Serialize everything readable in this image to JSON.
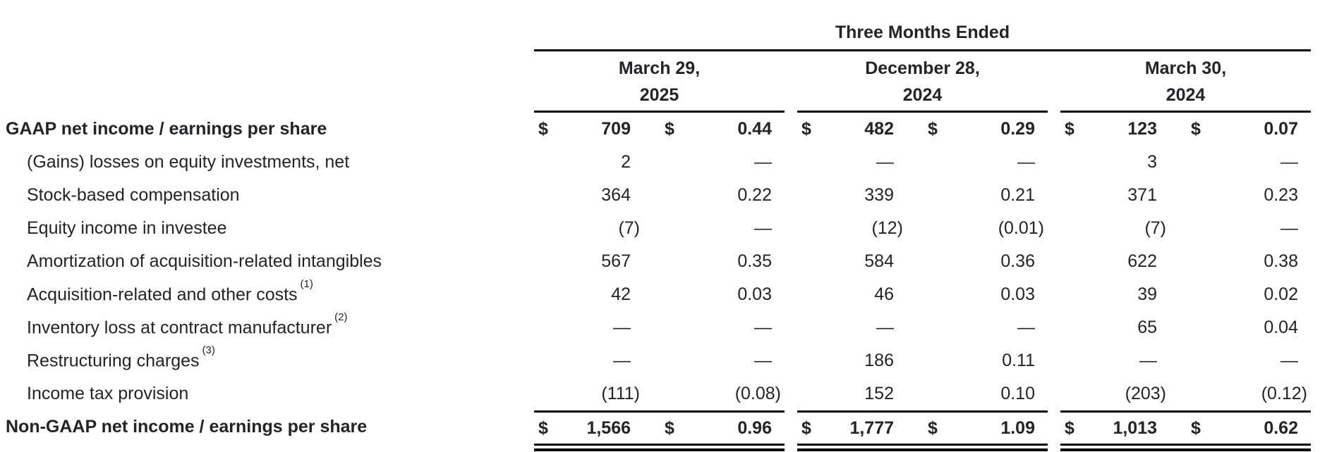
{
  "title": "Three Months Ended",
  "currency_symbol": "$",
  "periods": [
    {
      "month_line": "March 29,",
      "year_line": "2025"
    },
    {
      "month_line": "December 28,",
      "year_line": "2024"
    },
    {
      "month_line": "March 30,",
      "year_line": "2024"
    }
  ],
  "column_kinds": [
    "net_income_millions",
    "earnings_per_share"
  ],
  "rows": [
    {
      "label": "GAAP net income / earnings per share",
      "footnote": "",
      "bold": true,
      "dollar_sign": true,
      "values": [
        {
          "income": "709",
          "eps": "0.44"
        },
        {
          "income": "482",
          "eps": "0.29"
        },
        {
          "income": "123",
          "eps": "0.07"
        }
      ]
    },
    {
      "label": "(Gains) losses on equity investments, net",
      "footnote": "",
      "bold": false,
      "dollar_sign": false,
      "values": [
        {
          "income": "2",
          "eps": "—"
        },
        {
          "income": "—",
          "eps": "—"
        },
        {
          "income": "3",
          "eps": "—"
        }
      ]
    },
    {
      "label": "Stock-based compensation",
      "footnote": "",
      "bold": false,
      "dollar_sign": false,
      "values": [
        {
          "income": "364",
          "eps": "0.22"
        },
        {
          "income": "339",
          "eps": "0.21"
        },
        {
          "income": "371",
          "eps": "0.23"
        }
      ]
    },
    {
      "label": "Equity income in investee",
      "footnote": "",
      "bold": false,
      "dollar_sign": false,
      "values": [
        {
          "income": "(7)",
          "eps": "—"
        },
        {
          "income": "(12)",
          "eps": "(0.01)"
        },
        {
          "income": "(7)",
          "eps": "—"
        }
      ]
    },
    {
      "label": "Amortization of acquisition-related intangibles",
      "footnote": "",
      "bold": false,
      "dollar_sign": false,
      "values": [
        {
          "income": "567",
          "eps": "0.35"
        },
        {
          "income": "584",
          "eps": "0.36"
        },
        {
          "income": "622",
          "eps": "0.38"
        }
      ]
    },
    {
      "label": "Acquisition-related and other costs",
      "footnote": "(1)",
      "bold": false,
      "dollar_sign": false,
      "values": [
        {
          "income": "42",
          "eps": "0.03"
        },
        {
          "income": "46",
          "eps": "0.03"
        },
        {
          "income": "39",
          "eps": "0.02"
        }
      ]
    },
    {
      "label": "Inventory loss at contract manufacturer",
      "footnote": "(2)",
      "bold": false,
      "dollar_sign": false,
      "values": [
        {
          "income": "—",
          "eps": "—"
        },
        {
          "income": "—",
          "eps": "—"
        },
        {
          "income": "65",
          "eps": "0.04"
        }
      ]
    },
    {
      "label": "Restructuring charges",
      "footnote": "(3)",
      "bold": false,
      "dollar_sign": false,
      "values": [
        {
          "income": "—",
          "eps": "—"
        },
        {
          "income": "186",
          "eps": "0.11"
        },
        {
          "income": "—",
          "eps": "—"
        }
      ]
    },
    {
      "label": "Income tax provision",
      "footnote": "",
      "bold": false,
      "dollar_sign": false,
      "values": [
        {
          "income": "(111)",
          "eps": "(0.08)"
        },
        {
          "income": "152",
          "eps": "0.10"
        },
        {
          "income": "(203)",
          "eps": "(0.12)"
        }
      ]
    },
    {
      "label": "Non-GAAP net income / earnings per share",
      "footnote": "",
      "bold": true,
      "dollar_sign": true,
      "values": [
        {
          "income": "1,566",
          "eps": "0.96"
        },
        {
          "income": "1,777",
          "eps": "1.09"
        },
        {
          "income": "1,013",
          "eps": "0.62"
        }
      ]
    }
  ],
  "colors": {
    "text": "#232428",
    "rule": "#000000",
    "background": "#ffffff"
  }
}
